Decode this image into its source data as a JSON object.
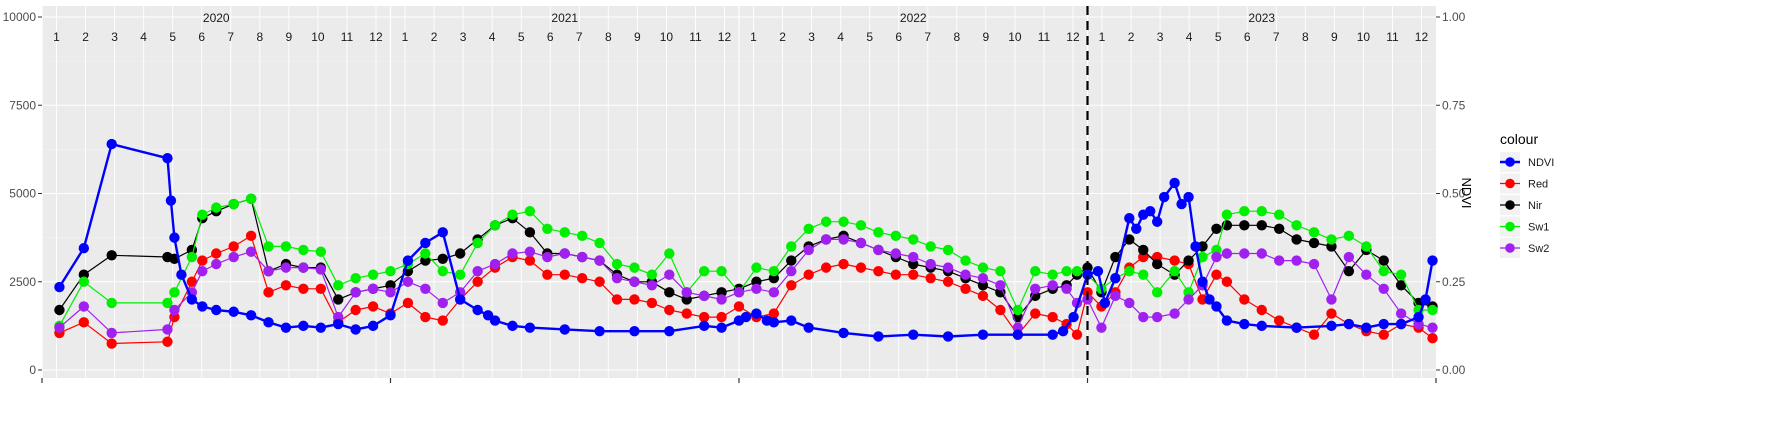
{
  "chart_data": {
    "type": "line",
    "title": "",
    "xlabel": "",
    "ylabel_left": "",
    "ylabel_right": "NDVI",
    "ylim_left": [
      0,
      10000
    ],
    "ylim_right": [
      0.0,
      1.0
    ],
    "x_range": [
      2020.0,
      2024.0
    ],
    "y_ticks_left": [
      "0",
      "2500",
      "5000",
      "7500",
      "10000"
    ],
    "y_ticks_right": [
      "0.00",
      "0.25",
      "0.50",
      "0.75",
      "1.00"
    ],
    "year_labels": [
      {
        "x": 2020,
        "label": "2020"
      },
      {
        "x": 2021,
        "label": "2021"
      },
      {
        "x": 2022,
        "label": "2022"
      },
      {
        "x": 2023,
        "label": "2023"
      }
    ],
    "month_labels": [
      "1",
      "2",
      "3",
      "4",
      "5",
      "6",
      "7",
      "8",
      "9",
      "10",
      "11",
      "12"
    ],
    "vline_dashed_x": 2023.0,
    "legend_title": "colour",
    "legend_position": "right",
    "grid": true,
    "series": [
      {
        "name": "NDVI",
        "axis": "right",
        "color": "#0000FF",
        "stroke_width": 2.4,
        "x": [
          2020.05,
          2020.12,
          2020.2,
          2020.36,
          2020.37,
          2020.38,
          2020.4,
          2020.43,
          2020.46,
          2020.5,
          2020.55,
          2020.6,
          2020.65,
          2020.7,
          2020.75,
          2020.8,
          2020.85,
          2020.9,
          2020.95,
          2021.0,
          2021.05,
          2021.1,
          2021.15,
          2021.2,
          2021.25,
          2021.28,
          2021.3,
          2021.35,
          2021.4,
          2021.5,
          2021.6,
          2021.7,
          2021.8,
          2021.9,
          2021.95,
          2022.0,
          2022.02,
          2022.05,
          2022.08,
          2022.1,
          2022.15,
          2022.2,
          2022.3,
          2022.4,
          2022.5,
          2022.6,
          2022.7,
          2022.8,
          2022.9,
          2022.93,
          2022.96,
          2023.0,
          2023.03,
          2023.05,
          2023.08,
          2023.12,
          2023.14,
          2023.16,
          2023.18,
          2023.2,
          2023.22,
          2023.25,
          2023.27,
          2023.29,
          2023.31,
          2023.33,
          2023.35,
          2023.37,
          2023.4,
          2023.45,
          2023.5,
          2023.6,
          2023.7,
          2023.75,
          2023.8,
          2023.85,
          2023.9,
          2023.95,
          2023.97,
          2023.99
        ],
        "y": [
          0.235,
          0.345,
          0.64,
          0.6,
          0.48,
          0.375,
          0.27,
          0.2,
          0.18,
          0.17,
          0.165,
          0.155,
          0.135,
          0.12,
          0.125,
          0.12,
          0.13,
          0.115,
          0.125,
          0.155,
          0.31,
          0.36,
          0.39,
          0.2,
          0.17,
          0.155,
          0.14,
          0.125,
          0.12,
          0.115,
          0.11,
          0.11,
          0.11,
          0.125,
          0.12,
          0.14,
          0.15,
          0.16,
          0.14,
          0.135,
          0.14,
          0.12,
          0.105,
          0.095,
          0.1,
          0.095,
          0.1,
          0.1,
          0.1,
          0.11,
          0.15,
          0.27,
          0.28,
          0.19,
          0.26,
          0.43,
          0.4,
          0.44,
          0.45,
          0.42,
          0.49,
          0.53,
          0.47,
          0.49,
          0.35,
          0.25,
          0.2,
          0.18,
          0.14,
          0.13,
          0.125,
          0.12,
          0.125,
          0.13,
          0.12,
          0.13,
          0.13,
          0.15,
          0.2,
          0.31
        ]
      },
      {
        "name": "Red",
        "axis": "left",
        "color": "#FF0000",
        "stroke_width": 1.2,
        "x": [
          2020.05,
          2020.12,
          2020.2,
          2020.36,
          2020.38,
          2020.43,
          2020.46,
          2020.5,
          2020.55,
          2020.6,
          2020.65,
          2020.7,
          2020.75,
          2020.8,
          2020.85,
          2020.9,
          2020.95,
          2021.0,
          2021.05,
          2021.1,
          2021.15,
          2021.2,
          2021.25,
          2021.3,
          2021.35,
          2021.4,
          2021.45,
          2021.5,
          2021.55,
          2021.6,
          2021.65,
          2021.7,
          2021.75,
          2021.8,
          2021.85,
          2021.9,
          2021.95,
          2022.0,
          2022.05,
          2022.1,
          2022.15,
          2022.2,
          2022.25,
          2022.3,
          2022.35,
          2022.4,
          2022.45,
          2022.5,
          2022.55,
          2022.6,
          2022.65,
          2022.7,
          2022.75,
          2022.8,
          2022.85,
          2022.9,
          2022.94,
          2022.97,
          2023.0,
          2023.04,
          2023.08,
          2023.12,
          2023.16,
          2023.2,
          2023.25,
          2023.29,
          2023.33,
          2023.37,
          2023.4,
          2023.45,
          2023.5,
          2023.55,
          2023.6,
          2023.65,
          2023.7,
          2023.75,
          2023.8,
          2023.85,
          2023.9,
          2023.95,
          2023.99
        ],
        "y": [
          1050,
          1350,
          750,
          800,
          1500,
          2500,
          3100,
          3300,
          3500,
          3800,
          2200,
          2400,
          2300,
          2300,
          1350,
          1700,
          1800,
          1600,
          1900,
          1500,
          1400,
          2000,
          2500,
          2900,
          3200,
          3100,
          2700,
          2700,
          2600,
          2500,
          2000,
          2000,
          1900,
          1700,
          1600,
          1500,
          1500,
          1800,
          1500,
          1600,
          2400,
          2700,
          2900,
          3000,
          2900,
          2800,
          2700,
          2700,
          2600,
          2500,
          2300,
          2100,
          1700,
          1000,
          1600,
          1500,
          1300,
          1000,
          2200,
          1800,
          2200,
          2900,
          3200,
          3200,
          3100,
          3000,
          2000,
          2700,
          2500,
          2000,
          1700,
          1400,
          1200,
          1000,
          1600,
          1300,
          1100,
          1000,
          1300,
          1200,
          900
        ]
      },
      {
        "name": "Nir",
        "axis": "left",
        "color": "#000000",
        "stroke_width": 1.2,
        "x": [
          2020.05,
          2020.12,
          2020.2,
          2020.36,
          2020.38,
          2020.43,
          2020.46,
          2020.5,
          2020.55,
          2020.6,
          2020.65,
          2020.7,
          2020.75,
          2020.8,
          2020.85,
          2020.9,
          2020.95,
          2021.0,
          2021.05,
          2021.1,
          2021.15,
          2021.2,
          2021.25,
          2021.3,
          2021.35,
          2021.4,
          2021.45,
          2021.5,
          2021.55,
          2021.6,
          2021.65,
          2021.7,
          2021.75,
          2021.8,
          2021.85,
          2021.9,
          2021.95,
          2022.0,
          2022.05,
          2022.1,
          2022.15,
          2022.2,
          2022.25,
          2022.3,
          2022.35,
          2022.4,
          2022.45,
          2022.5,
          2022.55,
          2022.6,
          2022.65,
          2022.7,
          2022.75,
          2022.8,
          2022.85,
          2022.9,
          2022.94,
          2022.97,
          2023.0,
          2023.04,
          2023.08,
          2023.12,
          2023.16,
          2023.2,
          2023.25,
          2023.29,
          2023.33,
          2023.37,
          2023.4,
          2023.45,
          2023.5,
          2023.55,
          2023.6,
          2023.65,
          2023.7,
          2023.75,
          2023.8,
          2023.85,
          2023.9,
          2023.95,
          2023.99
        ],
        "y": [
          1700,
          2700,
          3250,
          3200,
          3150,
          3400,
          4300,
          4500,
          4700,
          4850,
          2800,
          3000,
          2900,
          2900,
          2000,
          2200,
          2300,
          2400,
          2800,
          3100,
          3150,
          3300,
          3700,
          4100,
          4300,
          3900,
          3300,
          3300,
          3200,
          3100,
          2700,
          2500,
          2500,
          2200,
          2000,
          2100,
          2200,
          2300,
          2500,
          2600,
          3100,
          3500,
          3700,
          3800,
          3600,
          3400,
          3200,
          3000,
          2900,
          2800,
          2600,
          2400,
          2200,
          1500,
          2100,
          2300,
          2400,
          2700,
          2900,
          2200,
          3200,
          3700,
          3400,
          3000,
          2700,
          3100,
          3500,
          4000,
          4100,
          4100,
          4100,
          4000,
          3700,
          3600,
          3500,
          2800,
          3400,
          3100,
          2400,
          1900,
          1800
        ]
      },
      {
        "name": "Sw1",
        "axis": "left",
        "color": "#00EE00",
        "stroke_width": 1.2,
        "x": [
          2020.05,
          2020.12,
          2020.2,
          2020.36,
          2020.38,
          2020.43,
          2020.46,
          2020.5,
          2020.55,
          2020.6,
          2020.65,
          2020.7,
          2020.75,
          2020.8,
          2020.85,
          2020.9,
          2020.95,
          2021.0,
          2021.05,
          2021.1,
          2021.15,
          2021.2,
          2021.25,
          2021.3,
          2021.35,
          2021.4,
          2021.45,
          2021.5,
          2021.55,
          2021.6,
          2021.65,
          2021.7,
          2021.75,
          2021.8,
          2021.85,
          2021.9,
          2021.95,
          2022.0,
          2022.05,
          2022.1,
          2022.15,
          2022.2,
          2022.25,
          2022.3,
          2022.35,
          2022.4,
          2022.45,
          2022.5,
          2022.55,
          2022.6,
          2022.65,
          2022.7,
          2022.75,
          2022.8,
          2022.85,
          2022.9,
          2022.94,
          2022.97,
          2023.0,
          2023.04,
          2023.08,
          2023.12,
          2023.16,
          2023.2,
          2023.25,
          2023.29,
          2023.33,
          2023.37,
          2023.4,
          2023.45,
          2023.5,
          2023.55,
          2023.6,
          2023.65,
          2023.7,
          2023.75,
          2023.8,
          2023.85,
          2023.9,
          2023.95,
          2023.99
        ],
        "y": [
          1250,
          2500,
          1900,
          1900,
          2200,
          3200,
          4400,
          4600,
          4700,
          4850,
          3500,
          3500,
          3400,
          3350,
          2400,
          2600,
          2700,
          2800,
          3000,
          3300,
          2800,
          2700,
          3600,
          4100,
          4400,
          4500,
          4000,
          3900,
          3800,
          3600,
          3000,
          2900,
          2700,
          3300,
          2200,
          2800,
          2800,
          2200,
          2900,
          2800,
          3500,
          4000,
          4200,
          4200,
          4100,
          3900,
          3800,
          3700,
          3500,
          3400,
          3100,
          2900,
          2800,
          1700,
          2800,
          2700,
          2800,
          2800,
          2700,
          2300,
          2600,
          2800,
          2700,
          2200,
          2800,
          2200,
          3200,
          3400,
          4400,
          4500,
          4500,
          4400,
          4100,
          3900,
          3700,
          3800,
          3500,
          2800,
          2700,
          1700,
          1700
        ]
      },
      {
        "name": "Sw2",
        "axis": "left",
        "color": "#A020F0",
        "stroke_width": 1.2,
        "x": [
          2020.05,
          2020.12,
          2020.2,
          2020.36,
          2020.38,
          2020.43,
          2020.46,
          2020.5,
          2020.55,
          2020.6,
          2020.65,
          2020.7,
          2020.75,
          2020.8,
          2020.85,
          2020.9,
          2020.95,
          2021.0,
          2021.05,
          2021.1,
          2021.15,
          2021.2,
          2021.25,
          2021.3,
          2021.35,
          2021.4,
          2021.45,
          2021.5,
          2021.55,
          2021.6,
          2021.65,
          2021.7,
          2021.75,
          2021.8,
          2021.85,
          2021.9,
          2021.95,
          2022.0,
          2022.05,
          2022.1,
          2022.15,
          2022.2,
          2022.25,
          2022.3,
          2022.35,
          2022.4,
          2022.45,
          2022.5,
          2022.55,
          2022.6,
          2022.65,
          2022.7,
          2022.75,
          2022.8,
          2022.85,
          2022.9,
          2022.94,
          2022.97,
          2023.0,
          2023.04,
          2023.08,
          2023.12,
          2023.16,
          2023.2,
          2023.25,
          2023.29,
          2023.33,
          2023.37,
          2023.4,
          2023.45,
          2023.5,
          2023.55,
          2023.6,
          2023.65,
          2023.7,
          2023.75,
          2023.8,
          2023.85,
          2023.9,
          2023.95,
          2023.99
        ],
        "y": [
          1200,
          1800,
          1050,
          1150,
          1700,
          2200,
          2800,
          3000,
          3200,
          3350,
          2800,
          2900,
          2900,
          2850,
          1500,
          2200,
          2300,
          2200,
          2500,
          2300,
          1900,
          2200,
          2800,
          3000,
          3300,
          3350,
          3200,
          3300,
          3200,
          3100,
          2600,
          2500,
          2400,
          2700,
          2200,
          2100,
          2000,
          2200,
          2300,
          2200,
          2800,
          3400,
          3700,
          3700,
          3600,
          3400,
          3300,
          3200,
          3000,
          2900,
          2700,
          2600,
          2400,
          1200,
          2300,
          2400,
          2300,
          1900,
          2000,
          1200,
          2100,
          1900,
          1500,
          1500,
          1600,
          2000,
          2400,
          3200,
          3300,
          3300,
          3300,
          3100,
          3100,
          3000,
          2000,
          3200,
          2700,
          2300,
          1600,
          1300,
          1200
        ]
      }
    ]
  }
}
